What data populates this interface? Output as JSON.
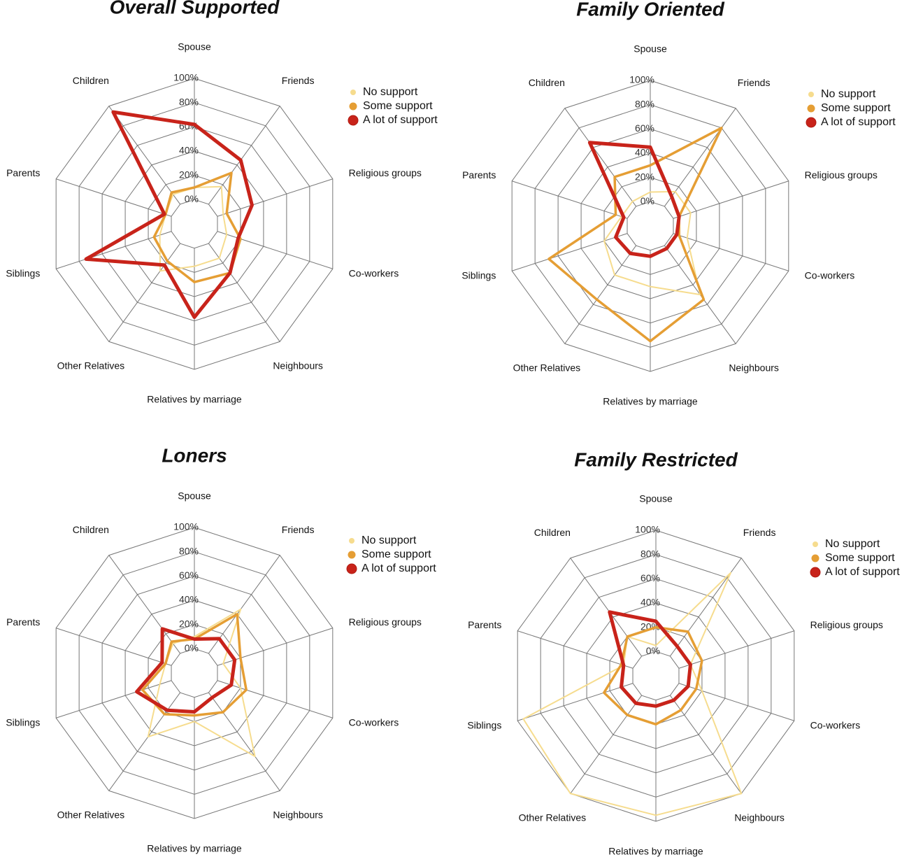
{
  "chart_data": [
    {
      "type": "radar",
      "title": "Overall Supported",
      "categories": [
        "Spouse",
        "Friends",
        "Religious groups",
        "Co-workers",
        "Neighbours",
        "Relatives by marriage",
        "Other Relatives",
        "Siblings",
        "Parents",
        "Children"
      ],
      "ylim": [
        -20,
        100
      ],
      "yticks": [
        {
          "value": 0,
          "label": "0%"
        },
        {
          "value": 20,
          "label": "20%"
        },
        {
          "value": 40,
          "label": "40%"
        },
        {
          "value": 60,
          "label": "60%"
        },
        {
          "value": 80,
          "label": "80%"
        },
        {
          "value": 100,
          "label": "100%"
        }
      ],
      "grid": true,
      "legend": "upper right",
      "series": [
        {
          "name": "No support",
          "color": "#f6dc8e",
          "values": [
            10,
            18,
            5,
            8,
            15,
            15,
            28,
            10,
            5,
            10
          ]
        },
        {
          "name": "Some support",
          "color": "#e59e34",
          "values": [
            10,
            32,
            8,
            20,
            30,
            28,
            18,
            15,
            5,
            12
          ]
        },
        {
          "name": "A lot of support",
          "color": "#c8231a",
          "values": [
            62,
            45,
            30,
            18,
            30,
            57,
            22,
            74,
            6,
            94
          ]
        }
      ]
    },
    {
      "type": "radar",
      "title": "Family Oriented",
      "categories": [
        "Spouse",
        "Friends",
        "Religious groups",
        "Co-workers",
        "Neighbours",
        "Relatives by marriage",
        "Other Relatives",
        "Siblings",
        "Parents",
        "Children"
      ],
      "ylim": [
        -20,
        100
      ],
      "yticks": [
        {
          "value": 0,
          "label": "0%"
        },
        {
          "value": 20,
          "label": "20%"
        },
        {
          "value": 40,
          "label": "40%"
        },
        {
          "value": 60,
          "label": "60%"
        },
        {
          "value": 80,
          "label": "80%"
        },
        {
          "value": 100,
          "label": "100%"
        }
      ],
      "grid": true,
      "legend": "upper right",
      "series": [
        {
          "name": "No support",
          "color": "#f6dc8e",
          "values": [
            8,
            15,
            15,
            12,
            50,
            30,
            30,
            20,
            5,
            5
          ]
        },
        {
          "name": "Some support",
          "color": "#e59e34",
          "values": [
            30,
            80,
            5,
            5,
            55,
            75,
            55,
            68,
            10,
            30
          ]
        },
        {
          "name": "A lot of support",
          "color": "#c8231a",
          "values": [
            45,
            10,
            5,
            3,
            3,
            5,
            8,
            10,
            3,
            65
          ]
        }
      ]
    },
    {
      "type": "radar",
      "title": "Loners",
      "categories": [
        "Spouse",
        "Friends",
        "Religious groups",
        "Co-workers",
        "Neighbours",
        "Relatives by marriage",
        "Other Relatives",
        "Siblings",
        "Parents",
        "Children"
      ],
      "ylim": [
        -20,
        100
      ],
      "yticks": [
        {
          "value": 0,
          "label": "0%"
        },
        {
          "value": 20,
          "label": "20%"
        },
        {
          "value": 40,
          "label": "40%"
        },
        {
          "value": 60,
          "label": "60%"
        },
        {
          "value": 80,
          "label": "80%"
        },
        {
          "value": 100,
          "label": "100%"
        }
      ],
      "grid": true,
      "legend": "upper right",
      "series": [
        {
          "name": "No support",
          "color": "#f6dc8e",
          "values": [
            10,
            45,
            5,
            20,
            65,
            20,
            45,
            10,
            5,
            10
          ]
        },
        {
          "name": "Some support",
          "color": "#e59e34",
          "values": [
            8,
            40,
            20,
            25,
            20,
            15,
            22,
            25,
            5,
            12
          ]
        },
        {
          "name": "A lot of support",
          "color": "#c8231a",
          "values": [
            8,
            15,
            15,
            12,
            5,
            12,
            18,
            30,
            8,
            25
          ]
        }
      ]
    },
    {
      "type": "radar",
      "title": "Family Restricted",
      "categories": [
        "Spouse",
        "Friends",
        "Religious groups",
        "Co-workers",
        "Neighbours",
        "Relatives by marriage",
        "Other Relatives",
        "Siblings",
        "Parents",
        "Children"
      ],
      "ylim": [
        -20,
        100
      ],
      "yticks": [
        {
          "value": 0,
          "label": "0%"
        },
        {
          "value": 20,
          "label": "20%"
        },
        {
          "value": 40,
          "label": "40%"
        },
        {
          "value": 60,
          "label": "60%"
        },
        {
          "value": 80,
          "label": "80%"
        },
        {
          "value": 100,
          "label": "100%"
        }
      ],
      "grid": true,
      "legend": "upper right",
      "series": [
        {
          "name": "No support",
          "color": "#f6dc8e",
          "values": [
            5,
            85,
            10,
            20,
            100,
            95,
            100,
            95,
            8,
            20
          ]
        },
        {
          "name": "Some support",
          "color": "#e59e34",
          "values": [
            20,
            25,
            20,
            15,
            15,
            20,
            20,
            25,
            10,
            20
          ]
        },
        {
          "name": "A lot of support",
          "color": "#c8231a",
          "values": [
            25,
            10,
            10,
            8,
            5,
            5,
            8,
            10,
            8,
            45
          ]
        }
      ]
    }
  ]
}
